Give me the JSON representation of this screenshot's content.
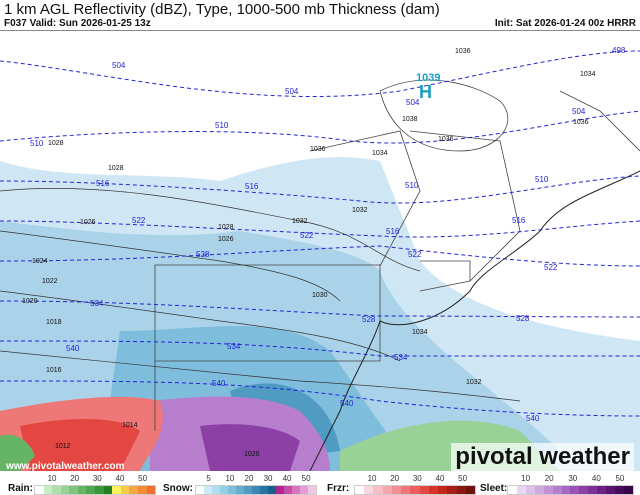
{
  "header": {
    "title": "1 km AGL Reflectivity (dBZ), Type, 1000-500 mb Thickness (dam)",
    "valid": "F037 Valid: Sun 2026-01-25 13z",
    "init": "Init: Sat 2026-01-24 00z HRRR"
  },
  "map": {
    "high_center": {
      "symbol": "H",
      "value": "1039",
      "color": "#1a9fbf"
    },
    "thickness_labels": [
      "498",
      "504",
      "504",
      "504",
      "504",
      "510",
      "510",
      "510",
      "510",
      "516",
      "516",
      "516",
      "516",
      "522",
      "522",
      "522",
      "522",
      "528",
      "528",
      "528",
      "534",
      "534",
      "534",
      "540",
      "540",
      "540",
      "540"
    ],
    "pressure_labels": [
      "1036",
      "1034",
      "1036",
      "1038",
      "1028",
      "1028",
      "1036",
      "1034",
      "1036",
      "1026",
      "1032",
      "1032",
      "1028",
      "1026",
      "1024",
      "1022",
      "1020",
      "1018",
      "1016",
      "1030",
      "1034",
      "1032",
      "1014",
      "1012",
      "1026"
    ]
  },
  "watermark": {
    "brand": "pivotal weather",
    "url": "www.pivotalweather.com"
  },
  "legend": {
    "rain": {
      "label": "Rain:",
      "ticks": [
        "10",
        "20",
        "30",
        "40",
        "50"
      ],
      "colors": [
        "#fff",
        "#c8ecc6",
        "#b0dfae",
        "#98d296",
        "#7fc47e",
        "#66b566",
        "#4ea64f",
        "#389538",
        "#237f24",
        "#fff15a",
        "#f6cc4e",
        "#f4a940",
        "#f38b38",
        "#f37033"
      ]
    },
    "snow": {
      "label": "Snow:",
      "ticks": [
        "5",
        "10",
        "20",
        "30",
        "40",
        "50"
      ],
      "colors": [
        "#fff",
        "#cde9f6",
        "#b2dcef",
        "#98cde6",
        "#7fbddc",
        "#66accf",
        "#4f9bc2",
        "#3a88b3",
        "#2774a1",
        "#185f8a",
        "#b0268e",
        "#c54ea6",
        "#d676bd",
        "#e39dd2",
        "#f0c6e6"
      ]
    },
    "frzr": {
      "label": "Frzr:",
      "ticks": [
        "10",
        "20",
        "30",
        "40",
        "50"
      ],
      "colors": [
        "#fff",
        "#fbd6dc",
        "#f8bfc5",
        "#f4a7ad",
        "#f28f94",
        "#ee7777",
        "#ea5f5c",
        "#e44741",
        "#d73429",
        "#c2271c",
        "#a61d14",
        "#8a170f",
        "#6e120b"
      ]
    },
    "sleet": {
      "label": "Sleet:",
      "ticks": [
        "10",
        "20",
        "30",
        "40",
        "50"
      ],
      "colors": [
        "#fff",
        "#ead6f0",
        "#ddc0e8",
        "#d0a9e0",
        "#c393d6",
        "#b67ecc",
        "#a868c1",
        "#9a53b4",
        "#8c40a6",
        "#7c2f96",
        "#6b2084",
        "#591470",
        "#470b5b",
        "#36064a"
      ]
    }
  }
}
